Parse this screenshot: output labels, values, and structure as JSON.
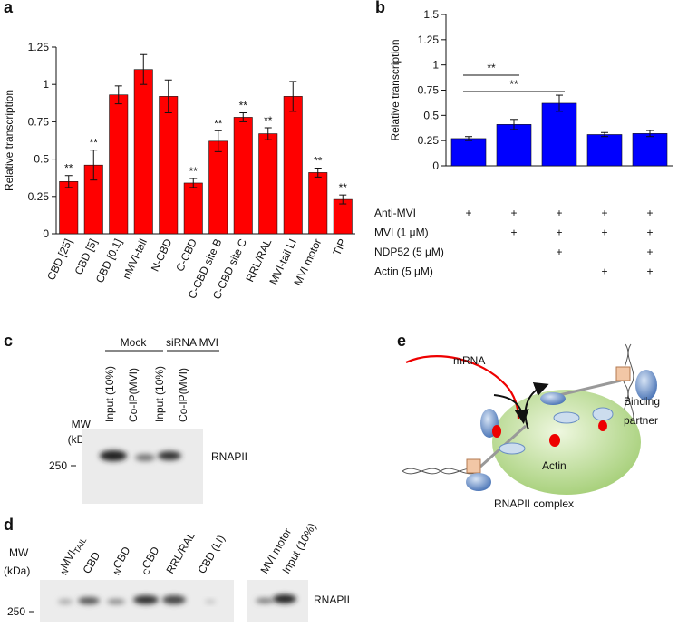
{
  "chart_data": [
    {
      "panel": "a",
      "type": "bar",
      "ylabel": "Relative transcription",
      "categories": [
        "CBD [25]",
        "CBD [5]",
        "CBD [0.1]",
        "nMVI-tail",
        "N-CBD",
        "C-CBD",
        "C-CBD site B",
        "C-CBD site C",
        "RRL/RAL",
        "MVI-tail LI",
        "MVI motor",
        "TIP"
      ],
      "values": [
        0.35,
        0.46,
        0.93,
        1.1,
        0.92,
        0.34,
        0.62,
        0.78,
        0.67,
        0.92,
        0.41,
        0.23
      ],
      "errors": [
        0.04,
        0.1,
        0.06,
        0.1,
        0.11,
        0.03,
        0.07,
        0.03,
        0.04,
        0.1,
        0.03,
        0.03
      ],
      "significance": [
        "**",
        "**",
        null,
        null,
        null,
        "**",
        "**",
        "**",
        "**",
        null,
        "**",
        "**"
      ],
      "color": "#ff0000",
      "ylim": [
        0,
        1.25
      ],
      "yticks": [
        0,
        0.25,
        0.5,
        0.75,
        1,
        1.25
      ]
    },
    {
      "panel": "b",
      "type": "bar",
      "ylabel": "Relative transcription",
      "categories": [
        null,
        null,
        null,
        null,
        null
      ],
      "values": [
        0.27,
        0.41,
        0.62,
        0.31,
        0.32
      ],
      "errors": [
        0.02,
        0.05,
        0.08,
        0.02,
        0.03
      ],
      "color": "#0000ff",
      "ylim": [
        0,
        1.5
      ],
      "yticks": [
        0,
        0.25,
        0.5,
        0.75,
        1,
        1.25,
        1.5
      ],
      "comparisons": [
        {
          "between": [
            0,
            1
          ],
          "label": "**"
        },
        {
          "between": [
            0,
            2
          ],
          "label": "**"
        }
      ],
      "conditions": [
        {
          "label": "Anti-MVI",
          "marks": [
            "+",
            "+",
            "+",
            "+",
            "+"
          ]
        },
        {
          "label": "MVI (1 μM)",
          "marks": [
            null,
            "+",
            "+",
            "+",
            "+"
          ]
        },
        {
          "label": "NDP52 (5 μM)",
          "marks": [
            null,
            null,
            "+",
            null,
            "+"
          ]
        },
        {
          "label": "Actin (5 μM)",
          "marks": [
            null,
            null,
            null,
            "+",
            "+"
          ]
        }
      ]
    }
  ],
  "panels": {
    "c": {
      "letter": "c",
      "groups": [
        "Mock",
        "siRNA MVI"
      ],
      "lanes": [
        "Input (10%)",
        "Co-IP(MVI)",
        "Input (10%)",
        "Co-IP(MVI)"
      ],
      "mw_label": [
        "MW",
        "(kDa)"
      ],
      "marker": "250",
      "band_label": "RNAPII"
    },
    "d": {
      "letter": "d",
      "mw_label": [
        "MW",
        "(kDa)"
      ],
      "marker": "250",
      "lanes": [
        {
          "pre": "N",
          "text": "MVI",
          "post": "TAIL"
        },
        {
          "text": "CBD"
        },
        {
          "pre": "N",
          "text": "CBD"
        },
        {
          "pre": "C",
          "text": "CBD"
        },
        {
          "text": "RRL/RAL"
        },
        {
          "text": "CBD (LI)"
        }
      ],
      "lanes2": [
        "MVI motor",
        "Input (10%)"
      ],
      "band_label": "RNAPII"
    },
    "e": {
      "letter": "e",
      "mrna": "mRNA",
      "partner": [
        "Binding",
        "partner"
      ],
      "actin": "Actin",
      "complex": "RNAPII complex"
    }
  }
}
